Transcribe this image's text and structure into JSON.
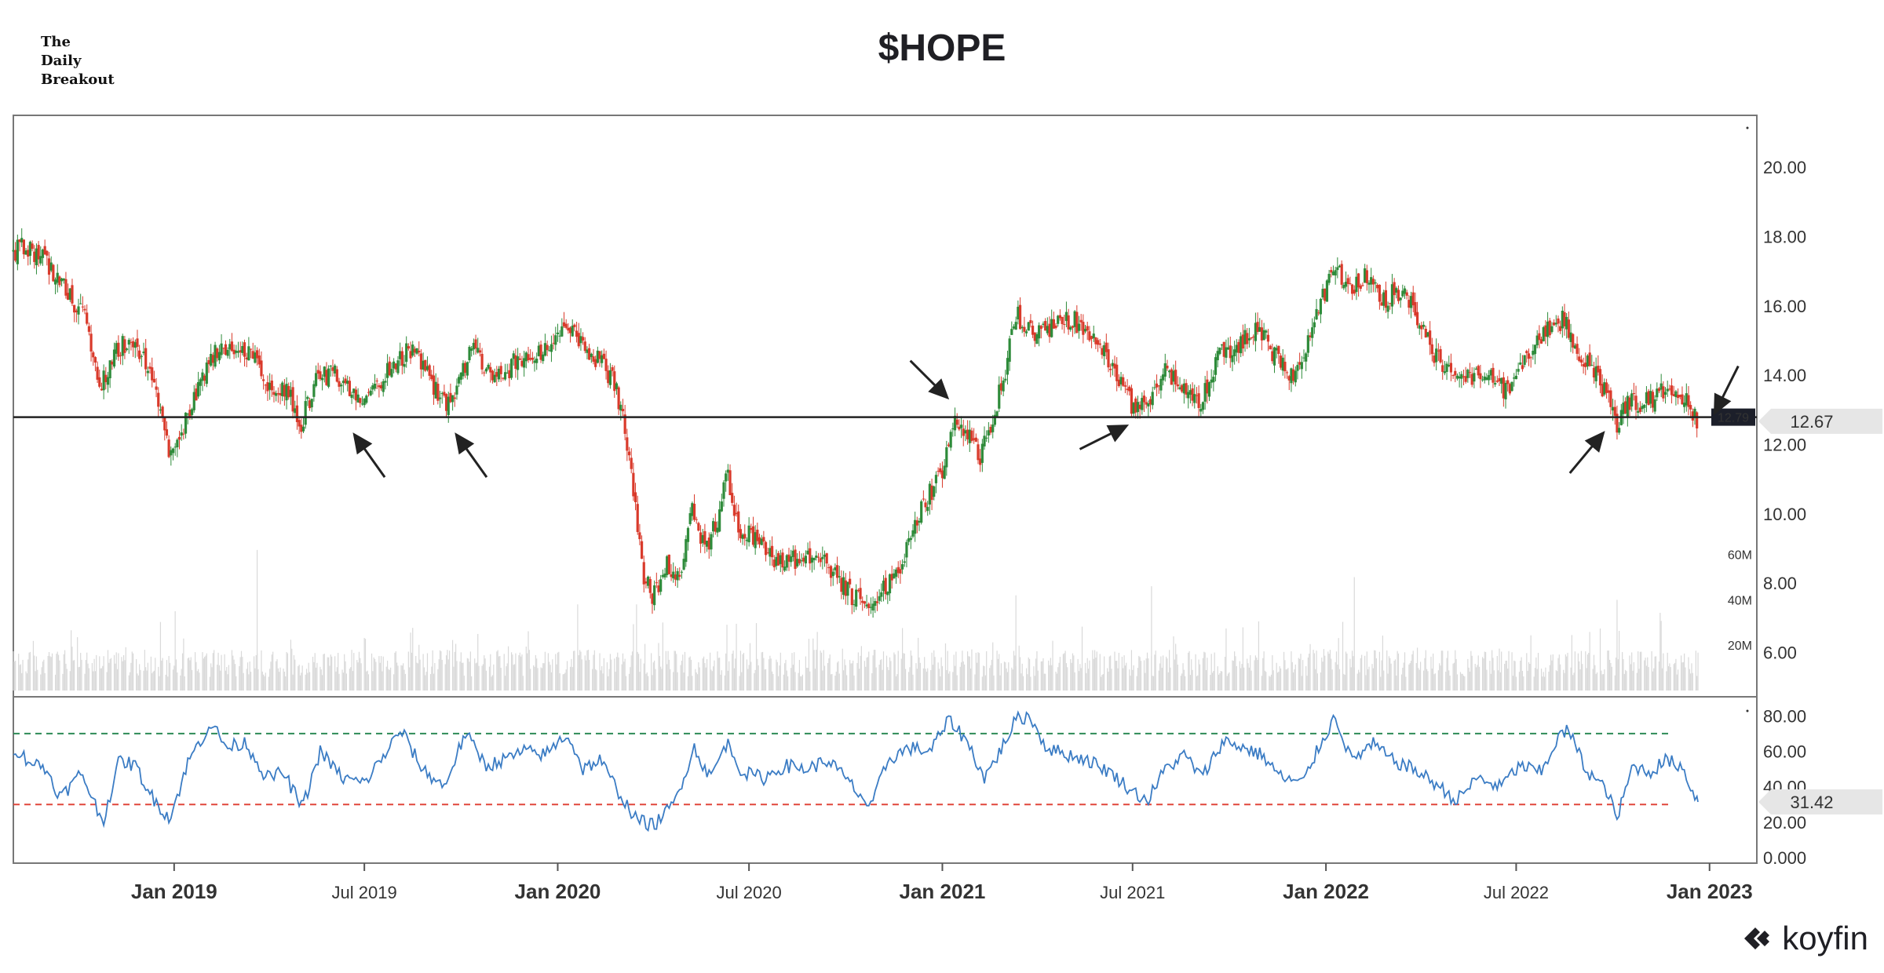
{
  "brand": {
    "line1": "The",
    "line2": "Daily",
    "line3": "Breakout"
  },
  "logo": {
    "text": "koyfin",
    "icon": "koyfin-k-icon"
  },
  "colors": {
    "up": "#2e8b3a",
    "down": "#d93a2b",
    "rsi": "#3b7cc4",
    "volume": "#d9d9d9",
    "support": "#222222",
    "overbought": "#2e8b57",
    "oversold": "#e0473c",
    "frame": "#777777"
  },
  "chart_data": {
    "type": "line",
    "title": "$HOPE",
    "x_ticks": [
      "Jan 2019",
      "Jul 2019",
      "Jan 2020",
      "Jul 2020",
      "Jan 2021",
      "Jul 2021",
      "Jan 2022",
      "Jul 2022",
      "Jan 2023"
    ],
    "x_tick_major": [
      true,
      false,
      true,
      false,
      true,
      false,
      true,
      false,
      true
    ],
    "x_range": [
      "2018-08-01",
      "2023-02-15"
    ],
    "price_panel": {
      "series_type": "candlestick",
      "ylim": [
        4.9,
        21.5
      ],
      "y_ticks": [
        "20.00",
        "18.00",
        "16.00",
        "14.00",
        "12.00",
        "10.00",
        "8.00",
        "6.00"
      ],
      "support_level": 12.79,
      "support_label": "12.79",
      "last_price": 12.67,
      "last_price_label": "12.67",
      "close_path": [
        [
          "2018-08-01",
          17.5
        ],
        [
          "2018-08-10",
          17.8
        ],
        [
          "2018-09-01",
          17.3
        ],
        [
          "2018-09-20",
          16.5
        ],
        [
          "2018-10-10",
          15.5
        ],
        [
          "2018-10-22",
          13.6
        ],
        [
          "2018-11-05",
          14.6
        ],
        [
          "2018-11-20",
          15.1
        ],
        [
          "2018-12-05",
          14.4
        ],
        [
          "2018-12-20",
          12.8
        ],
        [
          "2018-12-28",
          11.6
        ],
        [
          "2019-01-10",
          12.5
        ],
        [
          "2019-01-25",
          13.8
        ],
        [
          "2019-02-10",
          14.7
        ],
        [
          "2019-03-01",
          14.8
        ],
        [
          "2019-03-20",
          14.4
        ],
        [
          "2019-04-05",
          13.5
        ],
        [
          "2019-04-20",
          13.6
        ],
        [
          "2019-05-01",
          12.5
        ],
        [
          "2019-05-15",
          13.8
        ],
        [
          "2019-06-01",
          14.1
        ],
        [
          "2019-06-15",
          13.6
        ],
        [
          "2019-07-01",
          13.4
        ],
        [
          "2019-07-15",
          13.8
        ],
        [
          "2019-08-01",
          14.4
        ],
        [
          "2019-08-15",
          14.8
        ],
        [
          "2019-09-01",
          13.9
        ],
        [
          "2019-09-15",
          13.2
        ],
        [
          "2019-09-25",
          13.4
        ],
        [
          "2019-10-10",
          14.8
        ],
        [
          "2019-10-25",
          14.2
        ],
        [
          "2019-11-10",
          14.0
        ],
        [
          "2019-11-25",
          14.5
        ],
        [
          "2019-12-10",
          14.6
        ],
        [
          "2019-12-25",
          14.9
        ],
        [
          "2020-01-10",
          15.3
        ],
        [
          "2020-01-25",
          14.9
        ],
        [
          "2020-02-10",
          14.4
        ],
        [
          "2020-02-24",
          13.8
        ],
        [
          "2020-03-05",
          12.4
        ],
        [
          "2020-03-15",
          10.2
        ],
        [
          "2020-03-22",
          8.2
        ],
        [
          "2020-04-01",
          7.6
        ],
        [
          "2020-04-15",
          8.6
        ],
        [
          "2020-04-25",
          8.0
        ],
        [
          "2020-05-08",
          10.2
        ],
        [
          "2020-05-20",
          9.0
        ],
        [
          "2020-06-01",
          9.8
        ],
        [
          "2020-06-10",
          11.2
        ],
        [
          "2020-06-20",
          9.6
        ],
        [
          "2020-07-10",
          9.2
        ],
        [
          "2020-08-01",
          8.5
        ],
        [
          "2020-08-20",
          8.8
        ],
        [
          "2020-09-10",
          8.6
        ],
        [
          "2020-10-01",
          7.8
        ],
        [
          "2020-10-20",
          7.3
        ],
        [
          "2020-11-05",
          7.9
        ],
        [
          "2020-11-20",
          8.3
        ],
        [
          "2020-12-05",
          9.6
        ],
        [
          "2020-12-20",
          10.6
        ],
        [
          "2021-01-01",
          11.2
        ],
        [
          "2021-01-10",
          12.6
        ],
        [
          "2021-01-25",
          12.3
        ],
        [
          "2021-02-05",
          11.6
        ],
        [
          "2021-02-15",
          12.4
        ],
        [
          "2021-03-01",
          14.0
        ],
        [
          "2021-03-12",
          15.8
        ],
        [
          "2021-03-25",
          15.2
        ],
        [
          "2021-04-15",
          15.4
        ],
        [
          "2021-05-05",
          15.6
        ],
        [
          "2021-05-25",
          15.2
        ],
        [
          "2021-06-10",
          14.4
        ],
        [
          "2021-06-25",
          13.4
        ],
        [
          "2021-07-05",
          12.9
        ],
        [
          "2021-07-15",
          13.3
        ],
        [
          "2021-08-01",
          14.1
        ],
        [
          "2021-08-20",
          13.6
        ],
        [
          "2021-09-05",
          13.2
        ],
        [
          "2021-09-20",
          14.6
        ],
        [
          "2021-10-10",
          14.9
        ],
        [
          "2021-10-30",
          15.3
        ],
        [
          "2021-11-15",
          14.5
        ],
        [
          "2021-11-30",
          14.0
        ],
        [
          "2021-12-15",
          14.9
        ],
        [
          "2021-12-31",
          16.4
        ],
        [
          "2022-01-10",
          17.0
        ],
        [
          "2022-01-25",
          16.6
        ],
        [
          "2022-02-10",
          16.9
        ],
        [
          "2022-02-25",
          16.2
        ],
        [
          "2022-03-15",
          16.5
        ],
        [
          "2022-03-30",
          15.6
        ],
        [
          "2022-04-15",
          14.5
        ],
        [
          "2022-04-30",
          14.1
        ],
        [
          "2022-05-15",
          13.9
        ],
        [
          "2022-06-01",
          14.0
        ],
        [
          "2022-06-20",
          13.6
        ],
        [
          "2022-07-05",
          14.1
        ],
        [
          "2022-07-20",
          15.1
        ],
        [
          "2022-08-05",
          15.4
        ],
        [
          "2022-08-15",
          15.6
        ],
        [
          "2022-08-30",
          14.6
        ],
        [
          "2022-09-15",
          14.0
        ],
        [
          "2022-09-30",
          13.2
        ],
        [
          "2022-10-05",
          12.6
        ],
        [
          "2022-10-15",
          13.3
        ],
        [
          "2022-11-01",
          13.2
        ],
        [
          "2022-11-15",
          13.5
        ],
        [
          "2022-12-01",
          13.4
        ],
        [
          "2022-12-10",
          13.2
        ],
        [
          "2022-12-21",
          12.67
        ]
      ]
    },
    "volume_panel": {
      "ylim": [
        0,
        90
      ],
      "unit": "M",
      "y_ticks": [
        "60M",
        "40M",
        "20M"
      ],
      "spikes": [
        [
          "2019-01-02",
          35
        ],
        [
          "2019-03-21",
          62
        ],
        [
          "2020-03-16",
          38
        ],
        [
          "2020-04-10",
          30
        ],
        [
          "2021-03-12",
          42
        ],
        [
          "2021-07-19",
          46
        ],
        [
          "2022-01-28",
          50
        ],
        [
          "2022-10-05",
          40
        ],
        [
          "2020-01-20",
          38
        ]
      ]
    },
    "rsi_panel": {
      "ylim": [
        0,
        85
      ],
      "y_ticks": [
        "80.00",
        "60.00",
        "40.00",
        "20.00",
        "0.000"
      ],
      "overbought": 70,
      "oversold": 30,
      "last_value": 31.42,
      "last_value_label": "31.42",
      "path": [
        [
          "2018-08-01",
          62
        ],
        [
          "2018-08-15",
          55
        ],
        [
          "2018-09-01",
          50
        ],
        [
          "2018-09-15",
          34
        ],
        [
          "2018-10-05",
          48
        ],
        [
          "2018-10-25",
          20
        ],
        [
          "2018-11-10",
          55
        ],
        [
          "2018-11-25",
          52
        ],
        [
          "2018-12-10",
          35
        ],
        [
          "2018-12-28",
          22
        ],
        [
          "2019-01-15",
          55
        ],
        [
          "2019-02-05",
          76
        ],
        [
          "2019-02-20",
          62
        ],
        [
          "2019-03-10",
          65
        ],
        [
          "2019-03-30",
          45
        ],
        [
          "2019-04-15",
          48
        ],
        [
          "2019-05-03",
          28
        ],
        [
          "2019-05-20",
          60
        ],
        [
          "2019-06-10",
          45
        ],
        [
          "2019-07-01",
          42
        ],
        [
          "2019-07-20",
          58
        ],
        [
          "2019-08-05",
          72
        ],
        [
          "2019-08-25",
          50
        ],
        [
          "2019-09-15",
          40
        ],
        [
          "2019-10-05",
          70
        ],
        [
          "2019-10-25",
          52
        ],
        [
          "2019-11-10",
          55
        ],
        [
          "2019-11-30",
          60
        ],
        [
          "2019-12-20",
          58
        ],
        [
          "2020-01-10",
          70
        ],
        [
          "2020-01-25",
          50
        ],
        [
          "2020-02-10",
          55
        ],
        [
          "2020-02-25",
          40
        ],
        [
          "2020-03-15",
          22
        ],
        [
          "2020-04-01",
          18
        ],
        [
          "2020-04-20",
          30
        ],
        [
          "2020-05-10",
          62
        ],
        [
          "2020-05-25",
          45
        ],
        [
          "2020-06-10",
          65
        ],
        [
          "2020-06-25",
          48
        ],
        [
          "2020-07-15",
          45
        ],
        [
          "2020-08-05",
          52
        ],
        [
          "2020-08-25",
          50
        ],
        [
          "2020-09-15",
          55
        ],
        [
          "2020-10-05",
          42
        ],
        [
          "2020-10-25",
          28
        ],
        [
          "2020-11-10",
          55
        ],
        [
          "2020-11-30",
          62
        ],
        [
          "2020-12-20",
          60
        ],
        [
          "2021-01-08",
          78
        ],
        [
          "2021-01-25",
          65
        ],
        [
          "2021-02-10",
          45
        ],
        [
          "2021-02-25",
          60
        ],
        [
          "2021-03-12",
          78
        ],
        [
          "2021-03-25",
          80
        ],
        [
          "2021-04-10",
          62
        ],
        [
          "2021-05-01",
          58
        ],
        [
          "2021-05-20",
          55
        ],
        [
          "2021-06-10",
          48
        ],
        [
          "2021-06-30",
          38
        ],
        [
          "2021-07-15",
          32
        ],
        [
          "2021-08-01",
          50
        ],
        [
          "2021-08-20",
          58
        ],
        [
          "2021-09-05",
          45
        ],
        [
          "2021-09-25",
          66
        ],
        [
          "2021-10-15",
          62
        ],
        [
          "2021-11-01",
          58
        ],
        [
          "2021-11-20",
          45
        ],
        [
          "2021-12-10",
          42
        ],
        [
          "2021-12-25",
          62
        ],
        [
          "2022-01-10",
          80
        ],
        [
          "2022-01-25",
          55
        ],
        [
          "2022-02-15",
          64
        ],
        [
          "2022-03-05",
          55
        ],
        [
          "2022-03-25",
          50
        ],
        [
          "2022-04-15",
          42
        ],
        [
          "2022-05-05",
          32
        ],
        [
          "2022-05-25",
          45
        ],
        [
          "2022-06-15",
          40
        ],
        [
          "2022-07-05",
          52
        ],
        [
          "2022-07-25",
          48
        ],
        [
          "2022-08-10",
          68
        ],
        [
          "2022-08-20",
          72
        ],
        [
          "2022-09-05",
          50
        ],
        [
          "2022-09-25",
          38
        ],
        [
          "2022-10-05",
          22
        ],
        [
          "2022-10-20",
          52
        ],
        [
          "2022-11-05",
          48
        ],
        [
          "2022-11-20",
          55
        ],
        [
          "2022-12-05",
          52
        ],
        [
          "2022-12-21",
          31.42
        ]
      ]
    },
    "annotations": [
      {
        "type": "arrow",
        "date": "2019-06-20",
        "value": 12.8,
        "from": "below-right"
      },
      {
        "type": "arrow",
        "date": "2019-09-25",
        "value": 12.8,
        "from": "below-right"
      },
      {
        "type": "arrow",
        "date": "2021-01-03",
        "value": 12.8,
        "from": "above-left"
      },
      {
        "type": "arrow",
        "date": "2021-07-05",
        "value": 12.8,
        "from": "below-left"
      },
      {
        "type": "arrow",
        "date": "2022-10-01",
        "value": 12.8,
        "from": "below-left"
      },
      {
        "type": "arrow",
        "date": "2022-12-21",
        "value": 12.8,
        "from": "above-right"
      }
    ]
  }
}
